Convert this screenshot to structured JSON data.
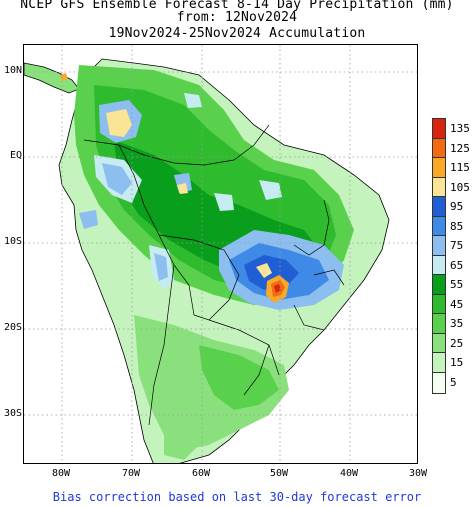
{
  "title": {
    "line1": "NCEP GFS Ensemble Forecast 8-14 Day Precipitation (mm)",
    "line2": "from: 12Nov2024",
    "line3": "19Nov2024-25Nov2024 Accumulation"
  },
  "lat_labels": [
    "10N",
    "EQ",
    "10S",
    "20S",
    "30S"
  ],
  "lon_labels": [
    "80W",
    "70W",
    "60W",
    "50W",
    "40W",
    "30W"
  ],
  "legend": {
    "labels": [
      "135",
      "125",
      "115",
      "105",
      "95",
      "85",
      "75",
      "65",
      "55",
      "45",
      "35",
      "25",
      "15",
      "5"
    ],
    "colors": [
      "#d8240e",
      "#f26b12",
      "#f9a827",
      "#fae496",
      "#1f5fd3",
      "#3f8ae6",
      "#8dbef0",
      "#c6ecf1",
      "#0a9e1d",
      "#2fbb2e",
      "#5ad14d",
      "#8be07e",
      "#c4f3bd",
      "#f4fff2"
    ]
  },
  "footer": "Bias correction based on last 30-day forecast error"
}
